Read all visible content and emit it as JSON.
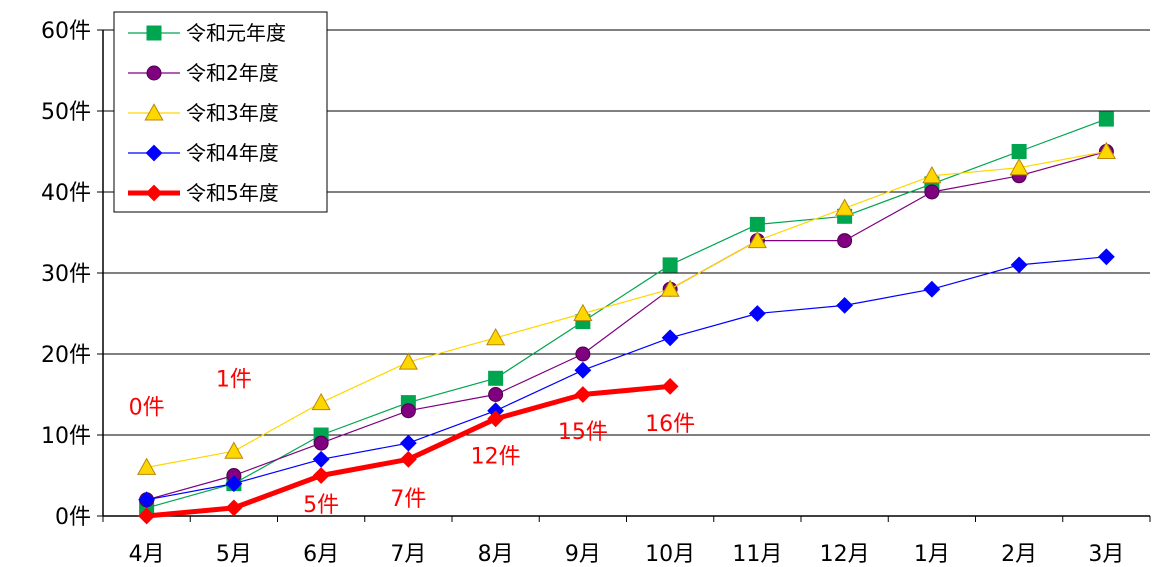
{
  "chart_data": {
    "type": "line",
    "title": "",
    "xlabel": "",
    "ylabel": "",
    "categories": [
      "4月",
      "5月",
      "6月",
      "7月",
      "8月",
      "9月",
      "10月",
      "11月",
      "12月",
      "1月",
      "2月",
      "3月"
    ],
    "ylim": [
      0,
      60
    ],
    "y_ticks": [
      {
        "value": 0,
        "label": "0件"
      },
      {
        "value": 10,
        "label": "10件"
      },
      {
        "value": 20,
        "label": "20件"
      },
      {
        "value": 30,
        "label": "30件"
      },
      {
        "value": 40,
        "label": "40件"
      },
      {
        "value": 50,
        "label": "50件"
      },
      {
        "value": 60,
        "label": "60件"
      }
    ],
    "grid": true,
    "legend_position": "top-left",
    "series": [
      {
        "name": "令和元年度",
        "color": "#00a550",
        "marker": "square",
        "values": [
          1,
          4,
          10,
          14,
          17,
          24,
          31,
          36,
          37,
          41,
          45,
          49
        ]
      },
      {
        "name": "令和2年度",
        "color": "#800080",
        "marker": "circle",
        "values": [
          2,
          5,
          9,
          13,
          15,
          20,
          28,
          34,
          34,
          40,
          42,
          45
        ]
      },
      {
        "name": "令和3年度",
        "color": "#ffd700",
        "marker": "triangle",
        "values": [
          6,
          8,
          14,
          19,
          22,
          25,
          28,
          34,
          38,
          42,
          43,
          45
        ]
      },
      {
        "name": "令和4年度",
        "color": "#0000ff",
        "marker": "diamond",
        "values": [
          2,
          4,
          7,
          9,
          13,
          18,
          22,
          25,
          26,
          28,
          31,
          32
        ]
      },
      {
        "name": "令和5年度",
        "color": "#ff0000",
        "marker": "diamond",
        "bold": true,
        "values": [
          0,
          1,
          5,
          7,
          12,
          15,
          16,
          null,
          null,
          null,
          null,
          null
        ]
      }
    ],
    "annotations": [
      {
        "text": "0件",
        "category_index": 0,
        "value": 13.5
      },
      {
        "text": "1件",
        "category_index": 1,
        "value": 17
      },
      {
        "text": "5件",
        "category_index": 2,
        "value": 1.5
      },
      {
        "text": "7件",
        "category_index": 3,
        "value": 2.2
      },
      {
        "text": "12件",
        "category_index": 4,
        "value": 7.5
      },
      {
        "text": "15件",
        "category_index": 5,
        "value": 10.5
      },
      {
        "text": "16件",
        "category_index": 6,
        "value": 11.5
      }
    ]
  }
}
